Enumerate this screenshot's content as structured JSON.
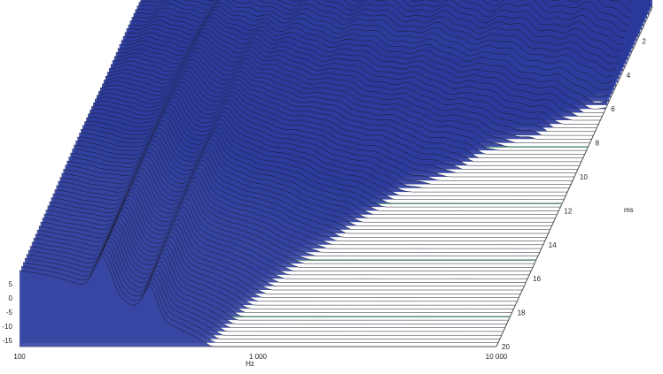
{
  "chart_data": {
    "type": "waterfall",
    "title": "",
    "xlabel": "Hz",
    "ylabel": "",
    "zlabel": "ms",
    "x_scale": "log",
    "xlim": [
      100,
      10000
    ],
    "x_tick_labels": [
      "100",
      "1 000",
      "10 000"
    ],
    "z_axis_ticks": [
      "2",
      "4",
      "6",
      "8",
      "10",
      "12",
      "14",
      "16",
      "18",
      "20"
    ],
    "zlim": [
      0,
      20
    ],
    "level_ticks": [
      "5",
      "0",
      "-5",
      "-10",
      "-15"
    ],
    "ylim": [
      -20,
      10
    ],
    "colors": {
      "peak": "#2a3a9a",
      "mid": "#8a96d8",
      "floor": "#f2f2fa",
      "trace": "#1a1a2a",
      "floor_accent": "#5aa07a",
      "frame": "#555555"
    },
    "decay_time_ms": [
      0,
      2,
      4,
      6,
      8,
      10,
      12,
      14,
      16,
      18,
      20
    ],
    "decay_freq_hz": [
      100,
      150,
      200,
      300,
      500,
      700,
      1000,
      1500,
      2000,
      3000,
      5000,
      7000,
      10000
    ]
  }
}
